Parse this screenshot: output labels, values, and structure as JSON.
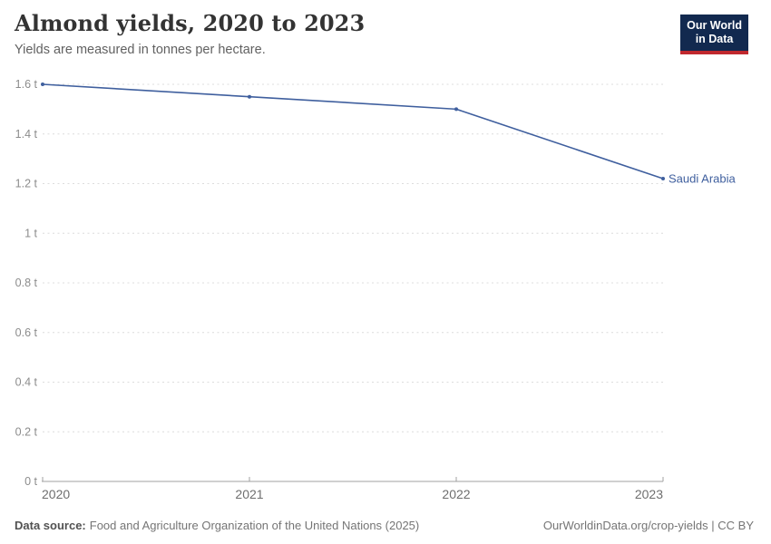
{
  "header": {
    "title": "Almond yields, 2020 to 2023",
    "subtitle": "Yields are measured in tonnes per hectare."
  },
  "logo": {
    "line1": "Our World",
    "line2": "in Data",
    "bg_color": "#12294f",
    "accent_color": "#c0282e",
    "text_color": "#ffffff"
  },
  "chart_data": {
    "type": "line",
    "title": "Almond yields, 2020 to 2023",
    "subtitle": "Yields are measured in tonnes per hectare.",
    "unit": "tonnes per hectare",
    "x": [
      2020,
      2021,
      2022,
      2023
    ],
    "x_tick_labels": [
      "2020",
      "2021",
      "2022",
      "2023"
    ],
    "series": [
      {
        "name": "Saudi Arabia",
        "values": [
          1.6,
          1.55,
          1.5,
          1.22
        ],
        "color": "#3f5f9e"
      }
    ],
    "ylim": [
      0,
      1.6
    ],
    "yticks": [
      0,
      0.2,
      0.4,
      0.6,
      0.8,
      1,
      1.2,
      1.4,
      1.6
    ],
    "ytick_labels": [
      "0 t",
      "0.2 t",
      "0.4 t",
      "0.6 t",
      "0.8 t",
      "1 t",
      "1.2 t",
      "1.4 t",
      "1.6 t"
    ],
    "grid": "horizontal dashed",
    "legend_position": "end-of-line entity label",
    "colors": {
      "line": "#3f5f9e",
      "grid": "#dcdcdc",
      "axis": "#a1a1a1",
      "ytick_text": "#8c8c8c",
      "xtick_text": "#6e6e6e"
    }
  },
  "footer": {
    "source_label": "Data source:",
    "source_text": "Food and Agriculture Organization of the United Nations (2025)",
    "link_text": "OurWorldinData.org/crop-yields | CC BY"
  }
}
